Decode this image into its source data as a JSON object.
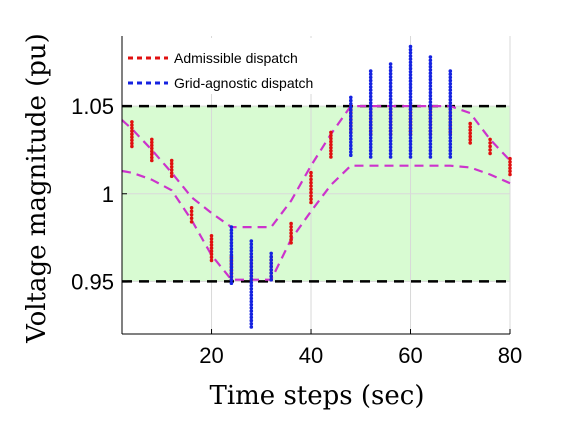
{
  "chart_data": {
    "type": "scatter",
    "title": "",
    "xlabel": "Time steps (sec)",
    "ylabel": "Voltage magnitude (pu)",
    "xlim": [
      2,
      80
    ],
    "ylim": [
      0.92,
      1.09
    ],
    "xticks": [
      20,
      40,
      60,
      80
    ],
    "xtick_labels": [
      "20",
      "40",
      "60",
      "80"
    ],
    "yticks": [
      0.95,
      1.0,
      1.05
    ],
    "ytick_labels": [
      "0.95",
      "1",
      "1.05"
    ],
    "grid": true,
    "legend_position": "top-left",
    "admissible_band": {
      "lower": 0.95,
      "upper": 1.05,
      "fill_color": "#d8fbd2",
      "line_color": "#000000"
    },
    "envelope": {
      "color": "#cc33cc",
      "x": [
        2,
        4,
        8,
        12,
        16,
        20,
        24,
        28,
        32,
        36,
        40,
        44,
        48,
        52,
        56,
        60,
        64,
        68,
        72,
        76,
        80
      ],
      "upper": [
        1.042,
        1.037,
        1.025,
        1.012,
        0.998,
        0.989,
        0.981,
        0.981,
        0.981,
        0.996,
        1.016,
        1.034,
        1.05,
        1.05,
        1.05,
        1.05,
        1.05,
        1.05,
        1.046,
        1.031,
        1.019
      ],
      "lower": [
        1.013,
        1.012,
        1.008,
        1.002,
        0.985,
        0.965,
        0.951,
        0.951,
        0.951,
        0.974,
        0.99,
        1.005,
        1.016,
        1.016,
        1.016,
        1.016,
        1.016,
        1.016,
        1.015,
        1.011,
        1.006
      ]
    },
    "series": [
      {
        "name": "Admissible dispatch",
        "color": "#e01010",
        "x": [
          4,
          8,
          12,
          16,
          20,
          24,
          28,
          32,
          36,
          40,
          44,
          48,
          52,
          56,
          60,
          64,
          68,
          72,
          76,
          80
        ],
        "ymin": [
          1.027,
          1.019,
          1.01,
          0.984,
          0.962,
          0.951,
          0.951,
          0.951,
          0.972,
          0.995,
          1.021,
          1.035,
          1.034,
          1.034,
          1.034,
          1.034,
          1.035,
          1.029,
          1.023,
          1.011
        ],
        "ymax": [
          1.041,
          1.031,
          1.019,
          0.992,
          0.976,
          0.964,
          0.964,
          0.964,
          0.983,
          1.012,
          1.035,
          1.05,
          1.05,
          1.05,
          1.05,
          1.05,
          1.05,
          1.04,
          1.031,
          1.02
        ]
      },
      {
        "name": "Grid-agnostic dispatch",
        "color": "#1522e0",
        "x": [
          24,
          28,
          32,
          48,
          52,
          56,
          60,
          64,
          68
        ],
        "ymin": [
          0.949,
          0.924,
          0.951,
          1.022,
          1.021,
          1.021,
          1.021,
          1.021,
          1.021
        ],
        "ymax": [
          0.981,
          0.973,
          0.966,
          1.055,
          1.07,
          1.074,
          1.084,
          1.078,
          1.07
        ]
      }
    ]
  }
}
